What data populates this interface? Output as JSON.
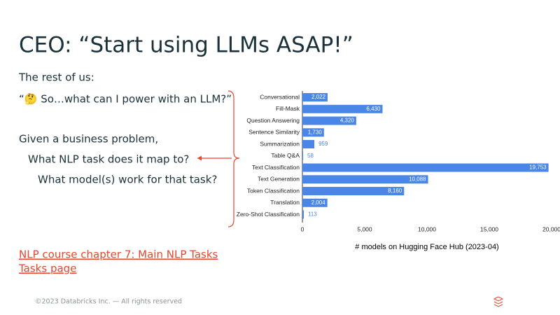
{
  "slide": {
    "title": "CEO: “Start using LLMs ASAP!”",
    "lines": [
      "The rest of us:",
      "“🤔 So…what can I power with an LLM?”",
      "Given a business problem,",
      "What NLP task does it map to?",
      "What model(s) work for that task?"
    ],
    "links": [
      "NLP course chapter 7: Main NLP Tasks",
      "Tasks page"
    ],
    "footer": "©2023 Databricks Inc. — All rights reserved"
  },
  "chart_data": {
    "type": "hbar",
    "xlabel": "# models on Hugging Face Hub (2023-04)",
    "categories": [
      "Conversational",
      "Fill-Mask",
      "Question Answering",
      "Sentence Similarity",
      "Summarization",
      "Table Q&A",
      "Text Classification",
      "Text Generation",
      "Token Classification",
      "Translation",
      "Zero-Shot Classification"
    ],
    "values": [
      2022,
      6430,
      4320,
      1730,
      959,
      58,
      19753,
      10088,
      8160,
      2004,
      113
    ],
    "value_labels": [
      "2,022",
      "6,430",
      "4,320",
      "1,730",
      "959",
      "58",
      "19,753",
      "10,088",
      "8,160",
      "2,004",
      "113"
    ],
    "color": "#4a86e8",
    "xlim": [
      0,
      20000
    ],
    "xticks": [
      0,
      {
        "value": 5000,
        "label": "5,000"
      },
      {
        "value": 10000,
        "label": "10,000"
      },
      {
        "value": 15000,
        "label": "15,000"
      },
      {
        "value": 20000,
        "label": "20,000"
      }
    ],
    "grid": false
  }
}
